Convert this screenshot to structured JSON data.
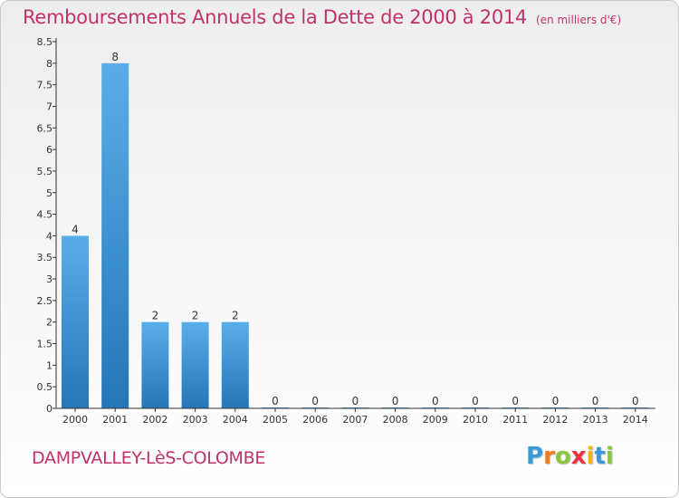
{
  "header": {
    "title": "Remboursements Annuels de la Dette de 2000 à 2014",
    "unit": "(en milliers d'€)"
  },
  "footer": {
    "commune": "DAMPVALLEY-LèS-COLOMBE",
    "logo_letters": [
      "P",
      "r",
      "o",
      "x",
      "i",
      "t",
      "i"
    ],
    "logo_colors": [
      "#3a9ad9",
      "#f07d1a",
      "#8cc63f",
      "#e8333c",
      "#f2b418",
      "#3a9ad9",
      "#8cc63f"
    ]
  },
  "colors": {
    "bar_light": "#5aaee8",
    "bar_dark": "#2476b8",
    "axis": "#333333",
    "text": "#333333"
  },
  "chart_data": {
    "type": "bar",
    "categories": [
      "2000",
      "2001",
      "2002",
      "2003",
      "2004",
      "2005",
      "2006",
      "2007",
      "2008",
      "2009",
      "2010",
      "2011",
      "2012",
      "2013",
      "2014"
    ],
    "values": [
      4,
      8,
      2,
      2,
      2,
      0,
      0,
      0,
      0,
      0,
      0,
      0,
      0,
      0,
      0
    ],
    "value_labels": [
      "4",
      "8",
      "2",
      "2",
      "2",
      "0",
      "0",
      "0",
      "0",
      "0",
      "0",
      "0",
      "0",
      "0",
      "0"
    ],
    "yticks": [
      0,
      0.5,
      1,
      1.5,
      2,
      2.5,
      3,
      3.5,
      4,
      4.5,
      5,
      5.5,
      6,
      6.5,
      7,
      7.5,
      8,
      8.5
    ],
    "ytick_labels": [
      "0",
      "0.5",
      "1",
      "1.5",
      "2",
      "2.5",
      "3",
      "3.5",
      "4",
      "4.5",
      "5",
      "5.5",
      "6",
      "6.5",
      "7",
      "7.5",
      "8",
      "8.5"
    ],
    "ylim": [
      0,
      8.5
    ],
    "grid": false,
    "legend": "none",
    "title": "Remboursements Annuels de la Dette de 2000 à 2014",
    "xlabel": "",
    "ylabel": ""
  }
}
